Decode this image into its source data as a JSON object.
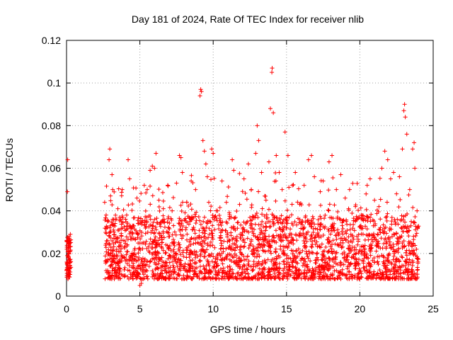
{
  "chart_data": {
    "type": "scatter",
    "title": "Day 181 of 2024, Rate Of TEC Index for receiver nlib",
    "xlabel": "GPS time / hours",
    "ylabel": "ROTI / TECUs",
    "xlim": [
      0,
      25
    ],
    "ylim": [
      0,
      0.12
    ],
    "xticks": [
      0,
      5,
      10,
      15,
      20,
      25
    ],
    "xtick_labels": [
      "0",
      "5",
      "10",
      "15",
      "20",
      "25"
    ],
    "yticks": [
      0,
      0.02,
      0.04,
      0.06,
      0.08,
      0.1,
      0.12
    ],
    "ytick_labels": [
      "0",
      "0.02",
      "0.04",
      "0.06",
      "0.08",
      "0.1",
      "0.12"
    ],
    "grid": true,
    "marker": "plus",
    "color": "#ff0000",
    "series": [
      {
        "name": "ROTI",
        "points": [
          [
            0.0,
            0.012
          ],
          [
            0.02,
            0.022
          ],
          [
            0.04,
            0.015
          ],
          [
            0.06,
            0.049
          ],
          [
            0.08,
            0.064
          ],
          [
            0.1,
            0.018
          ],
          [
            0.12,
            0.025
          ],
          [
            0.14,
            0.01
          ],
          [
            0.16,
            0.02
          ],
          [
            0.18,
            0.028
          ],
          [
            0.2,
            0.013
          ],
          [
            0.22,
            0.017
          ],
          [
            0.24,
            0.021
          ],
          [
            0.26,
            0.029
          ],
          [
            0.1,
            0.008
          ],
          [
            0.05,
            0.019
          ],
          [
            0.15,
            0.023
          ],
          [
            0.2,
            0.016
          ],
          [
            2.6,
            0.044
          ],
          [
            2.7,
            0.038
          ],
          [
            2.8,
            0.026
          ],
          [
            2.9,
            0.064
          ],
          [
            2.95,
            0.069
          ],
          [
            3.1,
            0.057
          ],
          [
            3.0,
            0.047
          ],
          [
            3.2,
            0.031
          ],
          [
            3.5,
            0.041
          ],
          [
            3.8,
            0.05
          ],
          [
            4.1,
            0.038
          ],
          [
            4.2,
            0.064
          ],
          [
            4.3,
            0.055
          ],
          [
            4.5,
            0.033
          ],
          [
            4.8,
            0.046
          ],
          [
            5.0,
            0.005
          ],
          [
            5.1,
            0.006
          ],
          [
            5.3,
            0.052
          ],
          [
            5.5,
            0.05
          ],
          [
            5.7,
            0.059
          ],
          [
            5.85,
            0.061
          ],
          [
            6.0,
            0.06
          ],
          [
            6.1,
            0.067
          ],
          [
            6.3,
            0.045
          ],
          [
            6.6,
            0.041
          ],
          [
            6.9,
            0.052
          ],
          [
            7.2,
            0.04
          ],
          [
            7.5,
            0.053
          ],
          [
            7.7,
            0.066
          ],
          [
            7.8,
            0.065
          ],
          [
            7.9,
            0.058
          ],
          [
            8.2,
            0.044
          ],
          [
            8.5,
            0.054
          ],
          [
            8.8,
            0.05
          ],
          [
            9.1,
            0.094
          ],
          [
            9.2,
            0.096
          ],
          [
            9.15,
            0.097
          ],
          [
            9.3,
            0.073
          ],
          [
            9.4,
            0.068
          ],
          [
            9.5,
            0.062
          ],
          [
            9.6,
            0.056
          ],
          [
            9.7,
            0.044
          ],
          [
            9.9,
            0.069
          ],
          [
            10.0,
            0.067
          ],
          [
            10.3,
            0.04
          ],
          [
            10.6,
            0.054
          ],
          [
            10.9,
            0.044
          ],
          [
            11.3,
            0.064
          ],
          [
            11.4,
            0.059
          ],
          [
            11.8,
            0.043
          ],
          [
            12.1,
            0.055
          ],
          [
            12.4,
            0.062
          ],
          [
            12.6,
            0.05
          ],
          [
            12.9,
            0.067
          ],
          [
            13.0,
            0.08
          ],
          [
            13.1,
            0.073
          ],
          [
            13.3,
            0.058
          ],
          [
            13.6,
            0.045
          ],
          [
            13.8,
            0.063
          ],
          [
            13.9,
            0.088
          ],
          [
            14.0,
            0.105
          ],
          [
            14.02,
            0.107
          ],
          [
            14.1,
            0.086
          ],
          [
            14.3,
            0.066
          ],
          [
            14.5,
            0.058
          ],
          [
            14.7,
            0.05
          ],
          [
            14.9,
            0.077
          ],
          [
            15.1,
            0.066
          ],
          [
            15.4,
            0.052
          ],
          [
            15.6,
            0.058
          ],
          [
            15.9,
            0.043
          ],
          [
            16.2,
            0.052
          ],
          [
            16.5,
            0.064
          ],
          [
            16.7,
            0.066
          ],
          [
            16.9,
            0.056
          ],
          [
            17.3,
            0.049
          ],
          [
            17.5,
            0.054
          ],
          [
            17.9,
            0.063
          ],
          [
            18.1,
            0.066
          ],
          [
            18.4,
            0.05
          ],
          [
            18.7,
            0.057
          ],
          [
            19.0,
            0.046
          ],
          [
            19.3,
            0.05
          ],
          [
            19.7,
            0.042
          ],
          [
            20.1,
            0.038
          ],
          [
            20.5,
            0.052
          ],
          [
            20.7,
            0.055
          ],
          [
            21.0,
            0.045
          ],
          [
            21.3,
            0.042
          ],
          [
            21.5,
            0.06
          ],
          [
            21.7,
            0.068
          ],
          [
            21.9,
            0.064
          ],
          [
            22.1,
            0.055
          ],
          [
            22.3,
            0.058
          ],
          [
            22.5,
            0.048
          ],
          [
            22.7,
            0.056
          ],
          [
            22.9,
            0.069
          ],
          [
            23.0,
            0.087
          ],
          [
            23.05,
            0.09
          ],
          [
            23.1,
            0.084
          ],
          [
            23.2,
            0.076
          ],
          [
            23.4,
            0.05
          ],
          [
            23.6,
            0.069
          ],
          [
            23.7,
            0.072
          ],
          [
            23.75,
            0.06
          ],
          [
            23.9,
            0.04
          ]
        ]
      }
    ]
  }
}
